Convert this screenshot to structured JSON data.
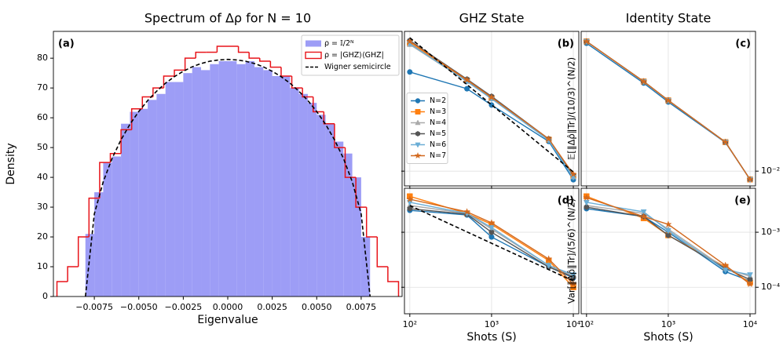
{
  "chart_data": [
    {
      "type": "histogram",
      "title": "Spectrum of  Δρ  for N = 10",
      "panel_label": "(a)",
      "xlabel": "Eigenvalue",
      "ylabel": "Density",
      "xlim": [
        -0.0098,
        0.0098
      ],
      "ylim": [
        0,
        89
      ],
      "xticks": [
        {
          "value": -0.0075,
          "label": "−0.0075"
        },
        {
          "value": -0.005,
          "label": "−0.0050"
        },
        {
          "value": -0.0025,
          "label": "−0.0025"
        },
        {
          "value": 0,
          "label": "0.0000"
        },
        {
          "value": 0.0025,
          "label": "0.0025"
        },
        {
          "value": 0.005,
          "label": "0.0050"
        },
        {
          "value": 0.0075,
          "label": "0.0075"
        }
      ],
      "yticks": [
        0,
        10,
        20,
        30,
        40,
        50,
        60,
        70,
        80
      ],
      "legend": "upper right",
      "series": [
        {
          "name": "ρ = 𝕀/2ᴺ",
          "color": "#8c8cf5",
          "style": "fill",
          "bins": [
            -0.008,
            -0.0075,
            -0.007,
            -0.0065,
            -0.006,
            -0.0055,
            -0.005,
            -0.0045,
            -0.004,
            -0.0035,
            -0.003,
            -0.0025,
            -0.002,
            -0.0015,
            -0.001,
            -0.0005,
            0,
            0.0005,
            0.001,
            0.0015,
            0.002,
            0.0025,
            0.003,
            0.0035,
            0.004,
            0.0045,
            0.005,
            0.0055,
            0.006,
            0.0065,
            0.007,
            0.0075,
            0.008
          ],
          "values": [
            21,
            35,
            45,
            47,
            58,
            62,
            63,
            66,
            68,
            72,
            72,
            75,
            77,
            76,
            78,
            79,
            79,
            78,
            79,
            77,
            76,
            74,
            74,
            70,
            68,
            65,
            61,
            58,
            52,
            48,
            40,
            20
          ]
        },
        {
          "name": "ρ = |GHZ⟩⟨GHZ|",
          "color": "#e8141a",
          "style": "step",
          "bins": [
            -0.0096,
            -0.009,
            -0.0084,
            -0.0078,
            -0.0072,
            -0.0066,
            -0.006,
            -0.0054,
            -0.0048,
            -0.0042,
            -0.0036,
            -0.003,
            -0.0024,
            -0.0018,
            -0.0012,
            -0.0006,
            0,
            0.0006,
            0.0012,
            0.0018,
            0.0024,
            0.003,
            0.0036,
            0.0042,
            0.0048,
            0.0054,
            0.006,
            0.0066,
            0.0072,
            0.0078,
            0.0084,
            0.009,
            0.0096
          ],
          "values": [
            5,
            10,
            20,
            33,
            45,
            48,
            56,
            63,
            67,
            70,
            74,
            76,
            80,
            82,
            82,
            84,
            84,
            82,
            80,
            79,
            77,
            74,
            70,
            67,
            62,
            58,
            50,
            40,
            30,
            20,
            10,
            5
          ]
        },
        {
          "name": "Wigner semicircle",
          "color": "#000000",
          "style": "dashed",
          "x": [
            -0.008,
            -0.0075,
            -0.007,
            -0.0065,
            -0.006,
            -0.0055,
            -0.005,
            -0.0045,
            -0.004,
            -0.0035,
            -0.003,
            -0.0025,
            -0.002,
            -0.0015,
            -0.001,
            -0.0005,
            0,
            0.0005,
            0.001,
            0.0015,
            0.002,
            0.0025,
            0.003,
            0.0035,
            0.004,
            0.0045,
            0.005,
            0.0055,
            0.006,
            0.0065,
            0.007,
            0.0075,
            0.008
          ],
          "values": [
            0,
            27.7,
            38.5,
            46.4,
            52.6,
            57.8,
            62.1,
            65.8,
            68.9,
            71.6,
            73.8,
            75.6,
            77.1,
            78.2,
            79.0,
            79.4,
            79.6,
            79.4,
            79.0,
            78.2,
            77.1,
            75.6,
            73.8,
            71.6,
            68.9,
            65.8,
            62.1,
            57.8,
            52.6,
            46.4,
            38.5,
            27.7,
            0
          ]
        }
      ]
    },
    {
      "type": "line",
      "title": "GHZ State",
      "panel_label": "(b)",
      "ylabel": "𝔼[‖Δρ̂‖Tr]/(10/3)^(N/2)",
      "log_x": true,
      "log_y": true,
      "grid": true,
      "show_xtick_labels": false,
      "show_ytick_labels": false,
      "legend": "center left",
      "xlim": [
        86,
        11670
      ],
      "ylim": [
        0.0078,
        0.105
      ],
      "xticks": [
        100,
        1000,
        10000
      ],
      "yticks": [
        0.01
      ],
      "x": [
        100,
        500,
        1000,
        5000,
        10000
      ],
      "series": [
        {
          "name": "N=2",
          "color": "#1f77b4",
          "marker": "circle",
          "values": [
            0.053,
            0.04,
            0.0304,
            0.0165,
            0.00865
          ]
        },
        {
          "name": "N=3",
          "color": "#ff7f0e",
          "marker": "square",
          "values": [
            0.0865,
            0.0458,
            0.0342,
            0.017,
            0.00924
          ]
        },
        {
          "name": "N=4",
          "color": "#aaaaaa",
          "marker": "triangle-up",
          "values": [
            0.0842,
            0.0452,
            0.0338,
            0.017,
            0.0091
          ]
        },
        {
          "name": "N=5",
          "color": "#555555",
          "marker": "diamond",
          "values": [
            0.09,
            0.047,
            0.0352,
            0.0172,
            0.00936
          ]
        },
        {
          "name": "N=6",
          "color": "#6baed6",
          "marker": "triangle-down",
          "values": [
            0.0854,
            0.0452,
            0.0338,
            0.0168,
            0.009
          ]
        },
        {
          "name": "N=7",
          "color": "#d2691e",
          "marker": "star",
          "values": [
            0.0887,
            0.0464,
            0.0346,
            0.0172,
            0.0095
          ]
        },
        {
          "color": "#000000",
          "style": "dashed",
          "x": [
            100,
            10000
          ],
          "values": [
            0.0944,
            0.00987
          ]
        }
      ]
    },
    {
      "type": "line",
      "title": "Identity State",
      "panel_label": "(c)",
      "log_x": true,
      "log_y": true,
      "grid": true,
      "show_xtick_labels": false,
      "ytick_side": "right",
      "xlim": [
        86,
        11670
      ],
      "ylim": [
        0.0078,
        0.105
      ],
      "xticks": [
        100,
        1000,
        10000
      ],
      "yticks": [
        {
          "value": 0.01,
          "label": "10⁻²"
        }
      ],
      "x": [
        100,
        500,
        1000,
        5000,
        10000
      ],
      "series": [
        {
          "color": "#1f77b4",
          "marker": "circle",
          "values": [
            0.086,
            0.044,
            0.032,
            0.0162,
            0.0087
          ]
        },
        {
          "color": "#ff7f0e",
          "marker": "square",
          "values": [
            0.0887,
            0.0452,
            0.0329,
            0.0163,
            0.0087
          ]
        },
        {
          "color": "#aaaaaa",
          "marker": "triangle-up",
          "values": [
            0.0887,
            0.0452,
            0.0329,
            0.0163,
            0.0087
          ]
        },
        {
          "color": "#555555",
          "marker": "diamond",
          "values": [
            0.0887,
            0.0452,
            0.0329,
            0.0163,
            0.0087
          ]
        },
        {
          "color": "#6baed6",
          "marker": "triangle-down",
          "values": [
            0.0887,
            0.0452,
            0.0329,
            0.0163,
            0.0087
          ]
        },
        {
          "color": "#d2691e",
          "marker": "star",
          "values": [
            0.0887,
            0.0452,
            0.0329,
            0.0163,
            0.0087
          ]
        }
      ]
    },
    {
      "type": "line",
      "panel_label": "(d)",
      "xlabel": "Shots (S)",
      "ylabel": "Var[‖Δρ̂‖Tr]/(5/6)^(N/2)",
      "log_x": true,
      "log_y": true,
      "grid": true,
      "show_ytick_labels": false,
      "xlim": [
        86,
        11670
      ],
      "ylim": [
        3.3e-05,
        0.0063
      ],
      "xticks": [
        {
          "value": 100,
          "label": "10²"
        },
        {
          "value": 1000,
          "label": "10³"
        },
        {
          "value": 10000,
          "label": "10⁴"
        }
      ],
      "yticks": [
        0.001,
        0.0001
      ],
      "x": [
        100,
        500,
        1000,
        5000,
        10000
      ],
      "series": [
        {
          "color": "#1f77b4",
          "marker": "circle",
          "values": [
            0.0025,
            0.00206,
            0.00082,
            0.000235,
            0.000148
          ]
        },
        {
          "color": "#ff7f0e",
          "marker": "square",
          "values": [
            0.0045,
            0.0022,
            0.00139,
            0.000306,
            0.0001
          ]
        },
        {
          "color": "#aaaaaa",
          "marker": "triangle-up",
          "values": [
            0.00306,
            0.0022,
            0.00114,
            0.00025,
            0.000158
          ]
        },
        {
          "color": "#555555",
          "marker": "diamond",
          "values": [
            0.00268,
            0.00213,
            0.001,
            0.000235,
            0.000153
          ]
        },
        {
          "color": "#6baed6",
          "marker": "triangle-down",
          "values": [
            0.00349,
            0.0022,
            0.00122,
            0.00025,
            0.000169
          ]
        },
        {
          "color": "#d2691e",
          "marker": "star",
          "values": [
            0.00398,
            0.00235,
            0.00148,
            0.000327,
            0.000114
          ]
        },
        {
          "color": "#000000",
          "style": "dashed",
          "x": [
            100,
            10000
          ],
          "values": [
            0.00306,
            0.00013
          ]
        }
      ]
    },
    {
      "type": "line",
      "panel_label": "(e)",
      "xlabel": "Shots (S)",
      "log_x": true,
      "log_y": true,
      "grid": true,
      "ytick_side": "right",
      "xlim": [
        86,
        11670
      ],
      "ylim": [
        3.3e-05,
        0.0063
      ],
      "xticks": [
        {
          "value": 100,
          "label": "10²"
        },
        {
          "value": 1000,
          "label": "10³"
        },
        {
          "value": 10000,
          "label": "10⁴"
        }
      ],
      "yticks": [
        {
          "value": 0.001,
          "label": "10⁻³"
        },
        {
          "value": 0.0001,
          "label": "10⁻⁴"
        }
      ],
      "x": [
        100,
        500,
        1000,
        5000,
        10000
      ],
      "series": [
        {
          "color": "#1f77b4",
          "marker": "circle",
          "values": [
            0.00268,
            0.00193,
            0.001,
            0.000193,
            0.00013
          ]
        },
        {
          "color": "#ff7f0e",
          "marker": "square",
          "values": [
            0.0045,
            0.0018,
            0.00088,
            0.000235,
            0.000122
          ]
        },
        {
          "color": "#aaaaaa",
          "marker": "triangle-up",
          "values": [
            0.00306,
            0.0022,
            0.00114,
            0.00022,
            0.000158
          ]
        },
        {
          "color": "#555555",
          "marker": "diamond",
          "values": [
            0.00286,
            0.00193,
            0.00088,
            0.00022,
            0.000138
          ]
        },
        {
          "color": "#6baed6",
          "marker": "triangle-down",
          "values": [
            0.00349,
            0.00235,
            0.00107,
            0.000206,
            0.000169
          ]
        },
        {
          "color": "#d2691e",
          "marker": "star",
          "values": [
            0.00425,
            0.00193,
            0.00139,
            0.00025,
            0.000114
          ]
        }
      ]
    }
  ]
}
